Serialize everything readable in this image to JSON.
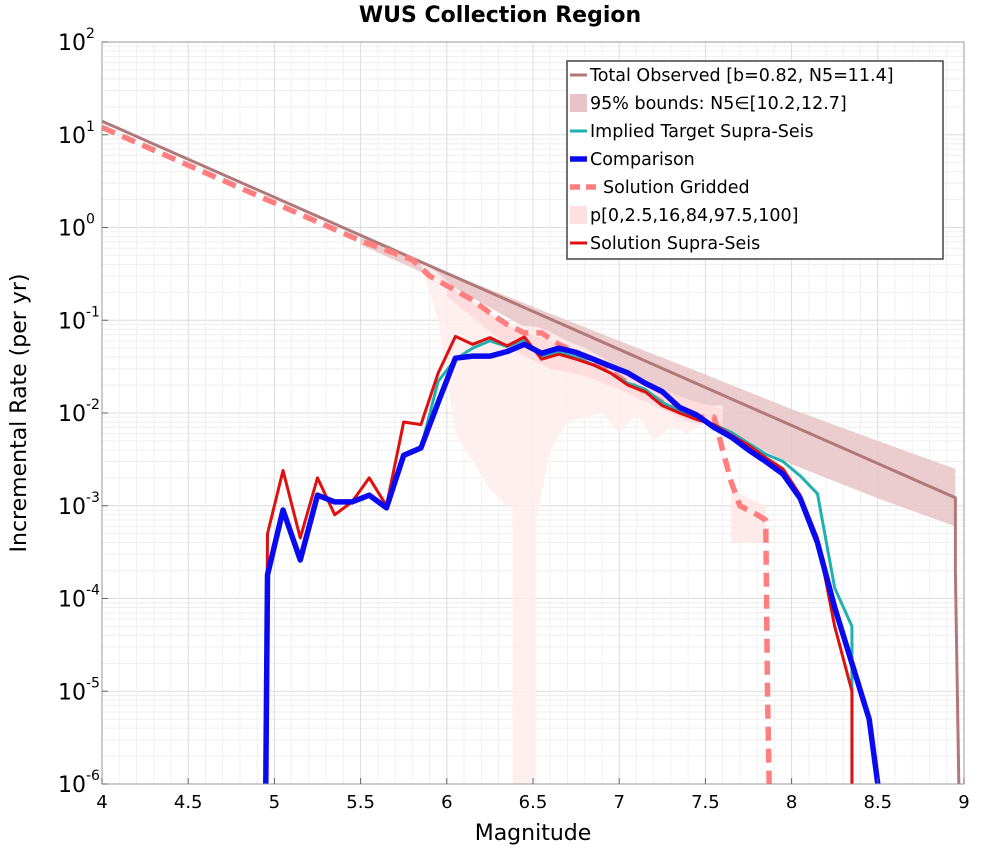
{
  "chart_data": {
    "type": "line",
    "title": "WUS Collection Region",
    "xlabel": "Magnitude",
    "ylabel": "Incremental Rate (per yr)",
    "xlim": [
      4,
      9
    ],
    "ylim": [
      1e-06,
      100
    ],
    "yscale": "log",
    "grid": true,
    "legend_position": "top-right",
    "x_ticks": [
      "4",
      "4.5",
      "5",
      "5.5",
      "6",
      "6.5",
      "7",
      "7.5",
      "8",
      "8.5",
      "9"
    ],
    "y_ticks": [
      {
        "base": "10",
        "exp": "-6",
        "value": 1e-06
      },
      {
        "base": "10",
        "exp": "-5",
        "value": 1e-05
      },
      {
        "base": "10",
        "exp": "-4",
        "value": 0.0001
      },
      {
        "base": "10",
        "exp": "-3",
        "value": 0.001
      },
      {
        "base": "10",
        "exp": "-2",
        "value": 0.01
      },
      {
        "base": "10",
        "exp": "-1",
        "value": 0.1
      },
      {
        "base": "10",
        "exp": "0",
        "value": 1
      },
      {
        "base": "10",
        "exp": "1",
        "value": 10
      },
      {
        "base": "10",
        "exp": "2",
        "value": 100
      }
    ],
    "legend": [
      {
        "label": "Total Observed [b=0.82, N5=11.4]",
        "style": "line",
        "color": "#B07878"
      },
      {
        "label": "95% bounds: N5∈[10.2,12.7]",
        "style": "band",
        "color": "#E8C4C8"
      },
      {
        "label": "Implied Target Supra-Seis",
        "style": "line",
        "color": "#20B0B0"
      },
      {
        "label": "Comparison",
        "style": "thick",
        "color": "#0A0AF0"
      },
      {
        "label": "Solution Gridded",
        "style": "dashed",
        "color": "#FF7F7F"
      },
      {
        "label": "p[0,2.5,16,84,97.5,100]",
        "style": "band",
        "color": "#FFE0E0"
      },
      {
        "label": "Solution Supra-Seis",
        "style": "line",
        "color": "#E01010"
      }
    ],
    "bands": [
      {
        "name": "95% bounds: N5∈[10.2,12.7]",
        "color": "#E8C4C8",
        "x": [
          5.5,
          6.0,
          6.5,
          7.0,
          7.5,
          8.0,
          8.5,
          8.95
        ],
        "lower": [
          0.65,
          0.25,
          0.075,
          0.025,
          0.008,
          0.0028,
          0.0012,
          0.0006
        ],
        "upper": [
          0.78,
          0.33,
          0.14,
          0.06,
          0.026,
          0.011,
          0.005,
          0.0025
        ]
      },
      {
        "name": "p[0,2.5,16,84,97.5,100] (outer)",
        "color": "#FFEDED",
        "x": [
          5.85,
          5.95,
          6.05,
          6.15,
          6.25,
          6.35,
          6.38,
          6.38,
          6.52,
          6.52,
          6.6,
          6.7,
          6.8,
          6.9,
          7.0,
          7.1,
          7.2,
          7.3,
          7.4,
          7.5,
          7.6
        ],
        "lower": [
          0.4,
          0.1,
          0.006,
          0.003,
          0.0015,
          0.001,
          0.001,
          1e-06,
          1e-06,
          0.0007,
          0.004,
          0.008,
          0.009,
          0.01,
          0.006,
          0.01,
          0.005,
          0.007,
          0.006,
          0.008,
          0.008
        ],
        "upper": [
          0.45,
          0.32,
          0.22,
          0.17,
          0.12,
          0.1,
          0.09,
          0.09,
          0.085,
          0.085,
          0.075,
          0.06,
          0.05,
          0.04,
          0.03,
          0.025,
          0.02,
          0.016,
          0.014,
          0.012,
          0.012
        ]
      },
      {
        "name": "p[0,2.5,16,84,97.5,100] (inner)",
        "color": "#FFD9DC",
        "x": [
          6.0,
          6.2,
          6.4,
          6.6,
          6.8,
          7.0,
          7.2,
          7.4,
          7.6
        ],
        "lower": [
          0.18,
          0.09,
          0.045,
          0.03,
          0.025,
          0.018,
          0.012,
          0.008,
          0.007
        ],
        "upper": [
          0.25,
          0.13,
          0.08,
          0.06,
          0.045,
          0.03,
          0.02,
          0.014,
          0.011
        ]
      },
      {
        "name": "p[0,2.5,16,84,97.5,100] (tail)",
        "color": "#FFE6E6",
        "x": [
          7.65,
          7.75,
          7.85
        ],
        "lower": [
          0.0004,
          0.0004,
          0.0004
        ],
        "upper": [
          0.0015,
          0.0012,
          0.001
        ]
      }
    ],
    "series": [
      {
        "name": "Total Observed [b=0.82, N5=11.4]",
        "color": "#B07878",
        "width": 3,
        "x": [
          4.0,
          8.95,
          8.95,
          8.97
        ],
        "y": [
          14.0,
          0.00122,
          0.0002,
          1e-06
        ]
      },
      {
        "name": "Solution Gridded",
        "color": "#FF7F7F",
        "width": 5.5,
        "dash": "14,8",
        "x": [
          4.0,
          5.5,
          5.8,
          5.9,
          6.05,
          6.15,
          6.25,
          6.35,
          6.45,
          6.55,
          6.65,
          6.75,
          6.85,
          6.95,
          7.05,
          7.15,
          7.25,
          7.35,
          7.45,
          7.55,
          7.6,
          7.65,
          7.7,
          7.8,
          7.85,
          7.86,
          7.87
        ],
        "y": [
          12.0,
          0.72,
          0.45,
          0.3,
          0.21,
          0.165,
          0.12,
          0.09,
          0.073,
          0.073,
          0.055,
          0.045,
          0.035,
          0.028,
          0.021,
          0.017,
          0.013,
          0.011,
          0.009,
          0.009,
          0.004,
          0.0018,
          0.001,
          0.0008,
          0.0007,
          1e-05,
          1e-06
        ]
      },
      {
        "name": "Implied Target Supra-Seis",
        "color": "#20B0B0",
        "width": 3,
        "x": [
          4.95,
          4.96,
          5.05,
          5.15,
          5.25,
          5.35,
          5.45,
          5.55,
          5.65,
          5.75,
          5.85,
          5.95,
          6.05,
          6.15,
          6.25,
          6.35,
          6.45,
          6.55,
          6.65,
          6.75,
          6.85,
          6.95,
          7.05,
          7.15,
          7.25,
          7.35,
          7.45,
          7.55,
          7.65,
          7.75,
          7.85,
          7.95,
          8.05,
          8.15,
          8.25,
          8.35,
          8.35
        ],
        "y": [
          1e-06,
          0.0002,
          0.0009,
          0.00026,
          0.0013,
          0.0011,
          0.0011,
          0.0013,
          0.001,
          0.0035,
          0.0042,
          0.022,
          0.038,
          0.05,
          0.06,
          0.052,
          0.062,
          0.041,
          0.045,
          0.04,
          0.033,
          0.027,
          0.021,
          0.018,
          0.013,
          0.0105,
          0.009,
          0.0075,
          0.0062,
          0.0047,
          0.0036,
          0.003,
          0.0021,
          0.00135,
          0.00013,
          5e-05,
          1e-06
        ]
      },
      {
        "name": "Solution Supra-Seis",
        "color": "#E01010",
        "width": 3,
        "x": [
          4.95,
          4.96,
          5.05,
          5.15,
          5.25,
          5.35,
          5.45,
          5.55,
          5.65,
          5.75,
          5.85,
          5.95,
          6.05,
          6.15,
          6.25,
          6.35,
          6.45,
          6.55,
          6.65,
          6.75,
          6.85,
          6.95,
          7.05,
          7.15,
          7.25,
          7.35,
          7.45,
          7.55,
          7.65,
          7.75,
          7.85,
          7.95,
          8.05,
          8.15,
          8.25,
          8.35,
          8.35
        ],
        "y": [
          1e-06,
          0.0005,
          0.0024,
          0.00045,
          0.002,
          0.0008,
          0.0011,
          0.002,
          0.001,
          0.008,
          0.0075,
          0.027,
          0.067,
          0.055,
          0.065,
          0.053,
          0.066,
          0.038,
          0.043,
          0.038,
          0.033,
          0.027,
          0.02,
          0.017,
          0.012,
          0.01,
          0.0085,
          0.0075,
          0.0058,
          0.0045,
          0.0033,
          0.0025,
          0.0013,
          0.00045,
          5e-05,
          1e-05,
          1e-06
        ]
      },
      {
        "name": "Comparison",
        "color": "#0A0AF0",
        "width": 5.5,
        "x": [
          4.95,
          4.96,
          5.05,
          5.15,
          5.25,
          5.35,
          5.45,
          5.55,
          5.65,
          5.75,
          5.85,
          5.95,
          6.05,
          6.15,
          6.25,
          6.35,
          6.45,
          6.55,
          6.65,
          6.75,
          6.85,
          6.95,
          7.05,
          7.15,
          7.25,
          7.35,
          7.45,
          7.55,
          7.65,
          7.75,
          7.85,
          7.95,
          8.05,
          8.15,
          8.25,
          8.35,
          8.45,
          8.5
        ],
        "y": [
          1e-06,
          0.00018,
          0.0009,
          0.00026,
          0.0013,
          0.0011,
          0.0011,
          0.0013,
          0.00095,
          0.0035,
          0.0042,
          0.013,
          0.039,
          0.041,
          0.041,
          0.046,
          0.055,
          0.044,
          0.05,
          0.045,
          0.038,
          0.032,
          0.027,
          0.021,
          0.017,
          0.0115,
          0.0095,
          0.007,
          0.0055,
          0.004,
          0.003,
          0.0022,
          0.0012,
          0.0004,
          8e-05,
          2e-05,
          5e-06,
          1e-06
        ]
      }
    ]
  }
}
